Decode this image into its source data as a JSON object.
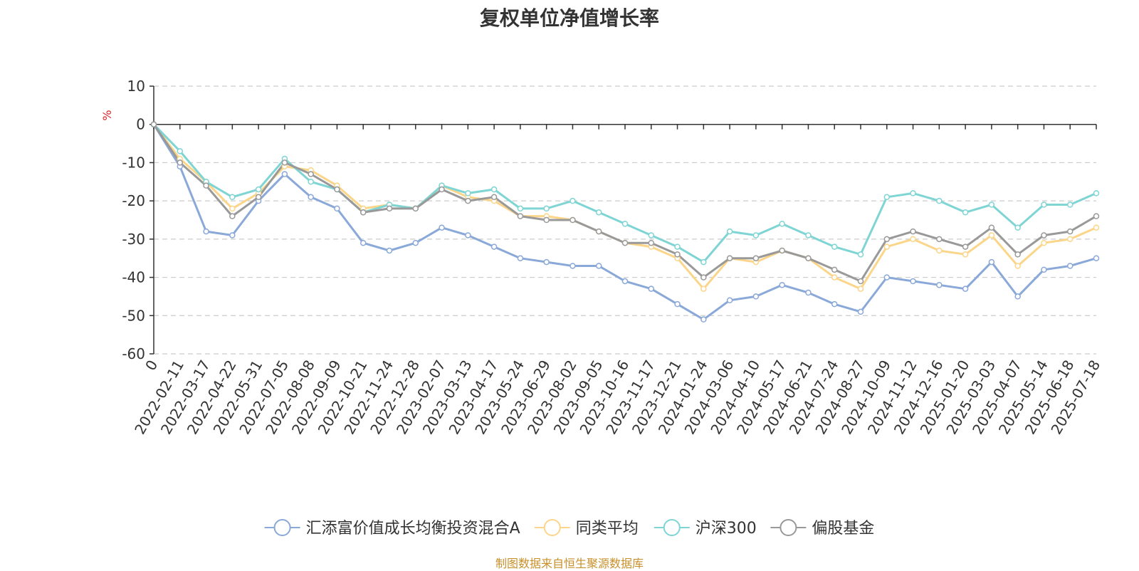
{
  "chart_data": {
    "type": "line",
    "title": "复权单位净值增长率",
    "ylabel": "%",
    "ylim": [
      -60,
      10
    ],
    "yticks": [
      10,
      0,
      -10,
      -20,
      -30,
      -40,
      -50,
      -60
    ],
    "grid": true,
    "legend_position": "bottom",
    "xtick_labels": [
      "0",
      "2022-02-11",
      "2022-03-17",
      "2022-04-22",
      "2022-05-31",
      "2022-07-05",
      "2022-08-08",
      "2022-09-09",
      "2022-10-21",
      "2022-11-24",
      "2022-12-28",
      "2023-02-07",
      "2023-03-13",
      "2023-04-17",
      "2023-05-24",
      "2023-06-29",
      "2023-08-02",
      "2023-09-05",
      "2023-10-16",
      "2023-11-17",
      "2023-12-21",
      "2024-01-24",
      "2024-03-06",
      "2024-04-10",
      "2024-05-17",
      "2024-06-21",
      "2024-07-24",
      "2024-08-27",
      "2024-10-09",
      "2024-11-12",
      "2024-12-16",
      "2025-01-20",
      "2025-03-03",
      "2025-04-07",
      "2025-05-14",
      "2025-06-18",
      "2025-07-18"
    ],
    "series": [
      {
        "name": "汇添富价值成长均衡投资混合A",
        "color": "#8aa8d8",
        "values": [
          0,
          -11,
          -28,
          -29,
          -20,
          -13,
          -19,
          -22,
          -31,
          -33,
          -31,
          -27,
          -29,
          -32,
          -35,
          -36,
          -37,
          -37,
          -41,
          -43,
          -47,
          -51,
          -46,
          -45,
          -42,
          -44,
          -47,
          -49,
          -40,
          -41,
          -42,
          -43,
          -36,
          -45,
          -38,
          -37,
          -35
        ]
      },
      {
        "name": "同类平均",
        "color": "#fbd68a",
        "values": [
          0,
          -9,
          -15,
          -22,
          -18,
          -11,
          -12,
          -16,
          -22,
          -21,
          -22,
          -16,
          -19,
          -20,
          -24,
          -24,
          -25,
          -28,
          -31,
          -32,
          -35,
          -43,
          -35,
          -36,
          -33,
          -35,
          -40,
          -43,
          -32,
          -30,
          -33,
          -34,
          -29,
          -37,
          -31,
          -30,
          -27
        ]
      },
      {
        "name": "沪深300",
        "color": "#7fd4d4",
        "values": [
          0,
          -7,
          -15,
          -19,
          -17,
          -9,
          -15,
          -17,
          -23,
          -21,
          -22,
          -16,
          -18,
          -17,
          -22,
          -22,
          -20,
          -23,
          -26,
          -29,
          -32,
          -36,
          -28,
          -29,
          -26,
          -29,
          -32,
          -34,
          -19,
          -18,
          -20,
          -23,
          -21,
          -27,
          -21,
          -21,
          -18
        ]
      },
      {
        "name": "偏股基金",
        "color": "#999999",
        "values": [
          0,
          -10,
          -16,
          -24,
          -19,
          -10,
          -13,
          -17,
          -23,
          -22,
          -22,
          -17,
          -20,
          -19,
          -24,
          -25,
          -25,
          -28,
          -31,
          -31,
          -34,
          -40,
          -35,
          -35,
          -33,
          -35,
          -38,
          -41,
          -30,
          -28,
          -30,
          -32,
          -27,
          -34,
          -29,
          -28,
          -24
        ]
      }
    ]
  },
  "source_note": "制图数据来自恒生聚源数据库"
}
